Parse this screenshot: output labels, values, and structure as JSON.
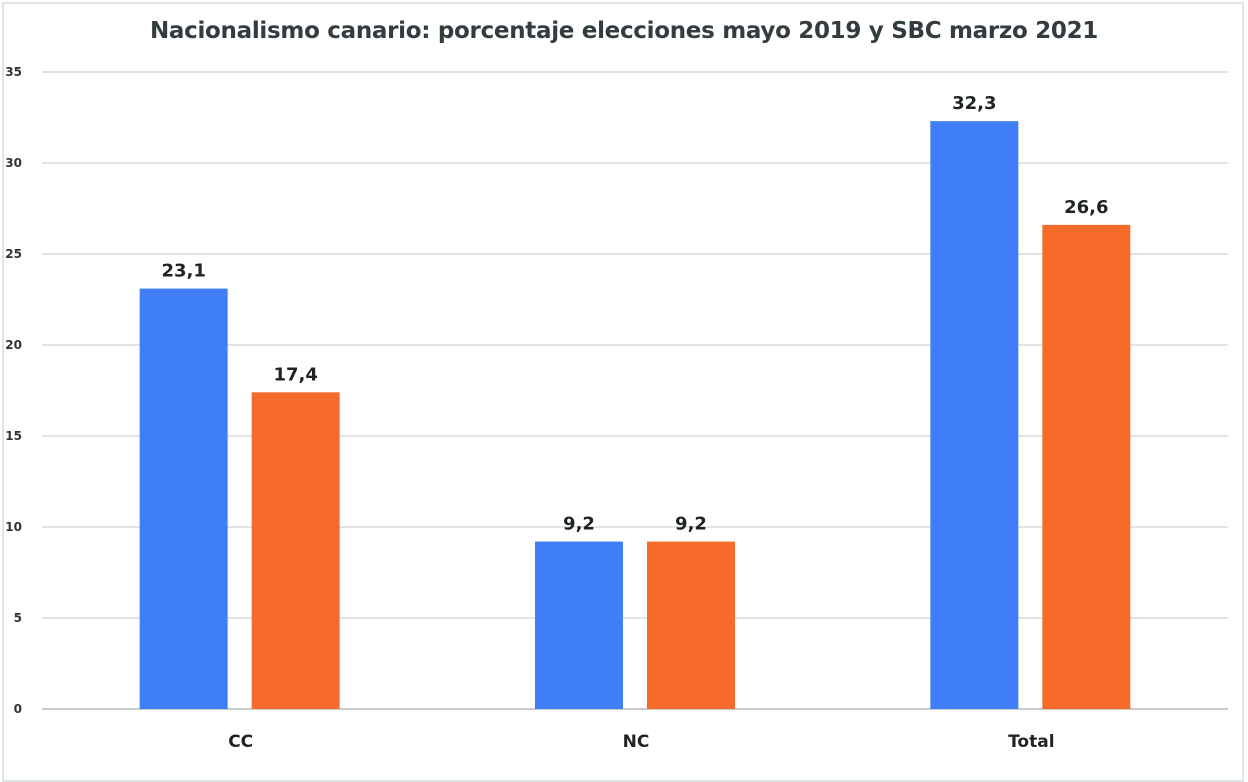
{
  "chart_data": {
    "type": "bar",
    "title": "Nacionalismo canario: porcentaje elecciones mayo 2019 y SBC marzo 2021",
    "categories": [
      "CC",
      "NC",
      "Total"
    ],
    "series": [
      {
        "values": [
          23.1,
          9.2,
          32.3
        ],
        "labels": [
          "23,1",
          "9,2",
          "32,3"
        ],
        "color": "#3f7ef6"
      },
      {
        "values": [
          17.4,
          9.2,
          26.6
        ],
        "labels": [
          "17,4",
          "9,2",
          "26,6"
        ],
        "color": "#f76b2a"
      }
    ],
    "xlabel": "",
    "ylabel": "",
    "ylim": [
      0,
      35
    ],
    "yticks": [
      "0",
      "5",
      "10",
      "15",
      "20",
      "25",
      "30",
      "35"
    ],
    "grid": true,
    "legend": "bottom (cut off)"
  }
}
